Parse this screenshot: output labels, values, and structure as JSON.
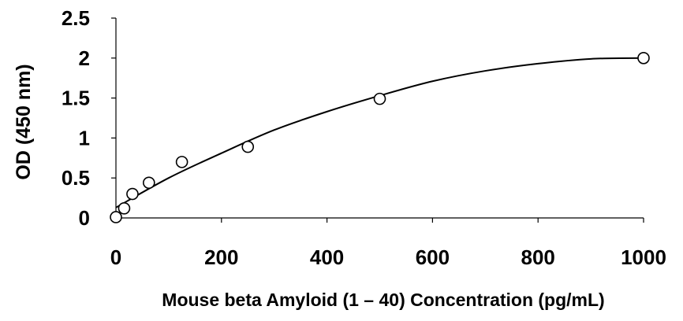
{
  "chart_data": {
    "type": "scatter",
    "title": "",
    "xlabel": "Mouse beta Amyloid (1 – 40) Concentration (pg/mL)",
    "ylabel": "OD (450 nm)",
    "xlim": [
      0,
      1000
    ],
    "ylim": [
      0,
      2.5
    ],
    "x_ticks": [
      0,
      200,
      400,
      600,
      800,
      1000
    ],
    "y_ticks": [
      0,
      0.5,
      1,
      1.5,
      2,
      2.5
    ],
    "x_tick_labels": [
      "0",
      "200",
      "400",
      "600",
      "800",
      "1000"
    ],
    "y_tick_labels": [
      "0",
      "0.5",
      "1",
      "1.5",
      "2",
      "2.5"
    ],
    "grid": false,
    "legend": "none",
    "series": [
      {
        "marker": "open-circle",
        "points": [
          {
            "x": 0,
            "y": 0.01
          },
          {
            "x": 15.6,
            "y": 0.12
          },
          {
            "x": 31.3,
            "y": 0.3
          },
          {
            "x": 62.5,
            "y": 0.44
          },
          {
            "x": 125,
            "y": 0.7
          },
          {
            "x": 250,
            "y": 0.89
          },
          {
            "x": 500,
            "y": 1.49
          },
          {
            "x": 1000,
            "y": 2.0
          }
        ]
      }
    ],
    "fit_curve": {
      "type": "polynomial-2",
      "points": [
        {
          "x": 0,
          "y": 0.13
        },
        {
          "x": 100,
          "y": 0.5
        },
        {
          "x": 200,
          "y": 0.81
        },
        {
          "x": 300,
          "y": 1.1
        },
        {
          "x": 400,
          "y": 1.33
        },
        {
          "x": 500,
          "y": 1.53
        },
        {
          "x": 600,
          "y": 1.71
        },
        {
          "x": 700,
          "y": 1.84
        },
        {
          "x": 800,
          "y": 1.93
        },
        {
          "x": 900,
          "y": 1.99
        },
        {
          "x": 1000,
          "y": 2.0
        }
      ]
    }
  }
}
